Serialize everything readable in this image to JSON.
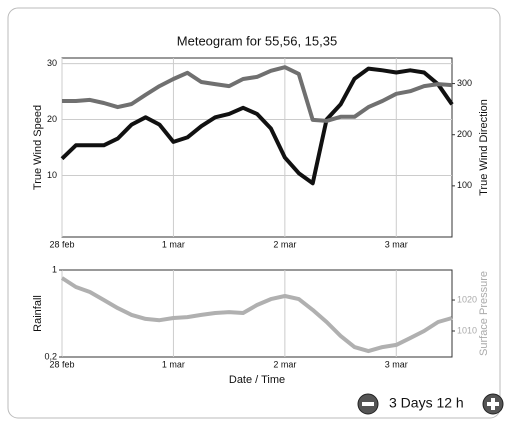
{
  "chart_data": [
    {
      "type": "line",
      "title": "Meteogram for 55,56, 15,35",
      "ylabel": "True Wind Speed",
      "y2label": "True Wind Direction",
      "x": [
        0,
        3,
        6,
        9,
        12,
        15,
        18,
        21,
        24,
        27,
        30,
        33,
        36,
        39,
        42,
        45,
        48,
        51,
        54,
        57,
        60,
        63,
        66,
        69,
        72,
        75,
        78,
        81,
        84
      ],
      "xlim": [
        0,
        84
      ],
      "xticks": [
        {
          "value": 0,
          "label": "28 feb"
        },
        {
          "value": 24,
          "label": "1 mar"
        },
        {
          "value": 48,
          "label": "2 mar"
        },
        {
          "value": 72,
          "label": "3 mar"
        }
      ],
      "ylim": [
        -1,
        31
      ],
      "yticks": [
        10,
        20,
        30
      ],
      "y2lim": [
        0,
        350
      ],
      "y2ticks": [
        100,
        200,
        300
      ],
      "grid": true,
      "series": [
        {
          "name": "True Wind Speed",
          "color": "#111111",
          "values": [
            13,
            15.4,
            15.4,
            15.4,
            16.6,
            19.1,
            20.4,
            19.1,
            16,
            16.8,
            18.8,
            20.4,
            21,
            22.1,
            21,
            18.4,
            13.2,
            10.4,
            8.6,
            20,
            22.7,
            27.3,
            29.1,
            28.8,
            28.4,
            28.8,
            28.4,
            26.3,
            22.7
          ]
        },
        {
          "name": "True Wind Direction",
          "color": "#707070",
          "axis": "y2",
          "values": [
            266,
            266,
            268,
            262,
            254,
            260,
            278,
            295,
            309,
            321,
            303,
            299,
            295,
            309,
            313,
            325,
            332,
            319,
            229,
            227,
            235,
            235,
            254,
            266,
            280,
            285,
            295,
            299,
            297
          ]
        }
      ]
    },
    {
      "type": "line",
      "ylabel": "Rainfall",
      "y2label": "Surface Pressure",
      "xlabel": "Date / Time",
      "x": [
        0,
        3,
        6,
        9,
        12,
        15,
        18,
        21,
        24,
        27,
        30,
        33,
        36,
        39,
        42,
        45,
        48,
        51,
        54,
        57,
        60,
        63,
        66,
        69,
        72,
        75,
        78,
        81,
        84
      ],
      "xlim": [
        0,
        84
      ],
      "xticks": [
        {
          "value": 0,
          "label": "28 feb"
        },
        {
          "value": 24,
          "label": "1 mar"
        },
        {
          "value": 48,
          "label": "2 mar"
        },
        {
          "value": 72,
          "label": "3 mar"
        }
      ],
      "ylim": [
        0.2,
        1
      ],
      "yticks": [
        {
          "value": 0.2,
          "label": "0,2"
        },
        1
      ],
      "y2lim": [
        1001.6,
        1029.7
      ],
      "y2ticks": [
        1010,
        1020
      ],
      "y2color": "#aaaaaa",
      "grid": false,
      "series": [
        {
          "name": "Surface Pressure",
          "color": "#b0b0b0",
          "axis": "y2",
          "values": [
            1027.1,
            1024.2,
            1022.6,
            1020,
            1017.4,
            1015.2,
            1013.9,
            1013.5,
            1014.2,
            1014.5,
            1015.2,
            1015.8,
            1016.1,
            1015.8,
            1018.4,
            1020.3,
            1021.3,
            1020.3,
            1016.8,
            1012.9,
            1008.4,
            1004.8,
            1003.5,
            1004.8,
            1005.5,
            1007.7,
            1010,
            1012.9,
            1014.2
          ]
        }
      ]
    }
  ],
  "controls": {
    "range_label": "3 Days 12 h"
  }
}
